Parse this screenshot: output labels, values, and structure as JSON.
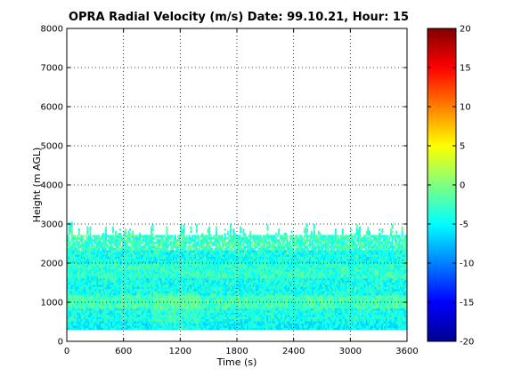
{
  "chart_data": {
    "type": "heatmap",
    "title": "OPRA Radial Velocity (m/s)  Date: 99.10.21, Hour: 15",
    "xlabel": "Time (s)",
    "ylabel": "Height (m AGL)",
    "xlim": [
      0,
      3600
    ],
    "ylim": [
      0,
      8000
    ],
    "x_ticks": [
      "0",
      "600",
      "1200",
      "1800",
      "2400",
      "3000",
      "3600"
    ],
    "y_ticks": [
      "0",
      "1000",
      "2000",
      "3000",
      "4000",
      "5000",
      "6000",
      "7000",
      "8000"
    ],
    "grid": true,
    "colorbar": {
      "range": [
        -20,
        20
      ],
      "ticks": [
        "20",
        "15",
        "10",
        "5",
        "0",
        "-5",
        "-10",
        "-15",
        "-20"
      ],
      "colormap": "jet"
    },
    "data_extent": {
      "time_range": [
        0,
        3600
      ],
      "height_range": [
        300,
        3000
      ],
      "typical_top_height": 2700,
      "velocity_range": [
        -7,
        0
      ]
    }
  }
}
